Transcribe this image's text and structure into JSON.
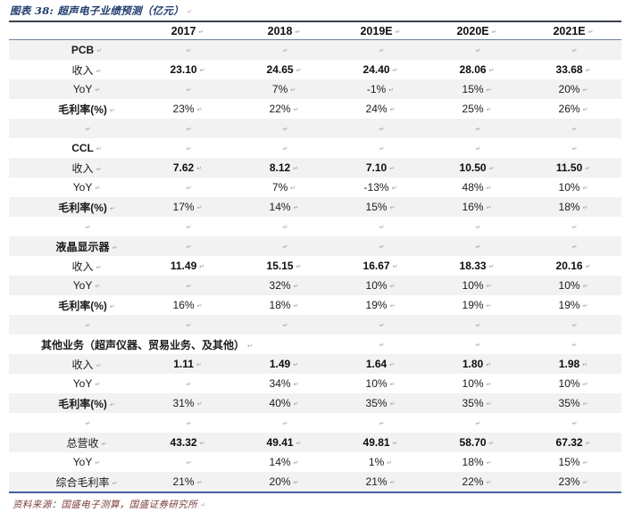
{
  "title": "图表 38: 超声电子业绩预测（亿元）",
  "source": "资料来源：国盛电子测算，国盛证券研究所",
  "colors": {
    "title_navy": "#1f3c6e",
    "source_maroon": "#7a3b3b",
    "row_shade_gray": "#f2f2f2",
    "table_top_border": "#39414f",
    "table_bottom_border": "#46619e",
    "header_divider": "#6f7f9d",
    "return_mark_gray": "#9aa0ab"
  },
  "chart_data": {
    "type": "table",
    "title": "超声电子业绩预测（亿元）",
    "figure_number": "图表 38",
    "columns": [
      "",
      "2017",
      "2018",
      "2019E",
      "2020E",
      "2021E"
    ],
    "rows": [
      {
        "label": "PCB",
        "values": [
          "",
          "",
          "",
          "",
          ""
        ],
        "kind": "section"
      },
      {
        "label": "收入",
        "values": [
          "23.10",
          "24.65",
          "24.40",
          "28.06",
          "33.68"
        ],
        "kind": "revenue"
      },
      {
        "label": "YoY",
        "values": [
          "",
          "7%",
          "-1%",
          "15%",
          "20%"
        ],
        "kind": "plain"
      },
      {
        "label": "毛利率(%)",
        "values": [
          "23%",
          "22%",
          "24%",
          "25%",
          "26%"
        ],
        "kind": "margin"
      },
      {
        "label": "",
        "values": [
          "",
          "",
          "",
          "",
          ""
        ],
        "kind": "blank"
      },
      {
        "label": "CCL",
        "values": [
          "",
          "",
          "",
          "",
          ""
        ],
        "kind": "section"
      },
      {
        "label": "收入",
        "values": [
          "7.62",
          "8.12",
          "7.10",
          "10.50",
          "11.50"
        ],
        "kind": "revenue"
      },
      {
        "label": "YoY",
        "values": [
          "",
          "7%",
          "-13%",
          "48%",
          "10%"
        ],
        "kind": "plain"
      },
      {
        "label": "毛利率(%)",
        "values": [
          "17%",
          "14%",
          "15%",
          "16%",
          "18%"
        ],
        "kind": "margin"
      },
      {
        "label": "",
        "values": [
          "",
          "",
          "",
          "",
          ""
        ],
        "kind": "blank"
      },
      {
        "label": "液晶显示器",
        "values": [
          "",
          "",
          "",
          "",
          ""
        ],
        "kind": "section"
      },
      {
        "label": "收入",
        "values": [
          "11.49",
          "15.15",
          "16.67",
          "18.33",
          "20.16"
        ],
        "kind": "revenue"
      },
      {
        "label": "YoY",
        "values": [
          "",
          "32%",
          "10%",
          "10%",
          "10%"
        ],
        "kind": "plain"
      },
      {
        "label": "毛利率(%)",
        "values": [
          "16%",
          "18%",
          "19%",
          "19%",
          "19%"
        ],
        "kind": "margin"
      },
      {
        "label": "",
        "values": [
          "",
          "",
          "",
          "",
          ""
        ],
        "kind": "blank"
      },
      {
        "label": "其他业务（超声仪器、贸易业务、及其他）",
        "values": [
          "",
          "",
          "",
          "",
          ""
        ],
        "kind": "section-wide"
      },
      {
        "label": "收入",
        "values": [
          "1.11",
          "1.49",
          "1.64",
          "1.80",
          "1.98"
        ],
        "kind": "revenue"
      },
      {
        "label": "YoY",
        "values": [
          "",
          "34%",
          "10%",
          "10%",
          "10%"
        ],
        "kind": "plain"
      },
      {
        "label": "毛利率(%)",
        "values": [
          "31%",
          "40%",
          "35%",
          "35%",
          "35%"
        ],
        "kind": "margin"
      },
      {
        "label": "",
        "values": [
          "",
          "",
          "",
          "",
          ""
        ],
        "kind": "blank"
      },
      {
        "label": "总营收",
        "values": [
          "43.32",
          "49.41",
          "49.81",
          "58.70",
          "67.32"
        ],
        "kind": "total"
      },
      {
        "label": "YoY",
        "values": [
          "",
          "14%",
          "1%",
          "18%",
          "15%"
        ],
        "kind": "plain"
      },
      {
        "label": "综合毛利率",
        "values": [
          "21%",
          "20%",
          "21%",
          "22%",
          "23%"
        ],
        "kind": "plain"
      }
    ]
  }
}
